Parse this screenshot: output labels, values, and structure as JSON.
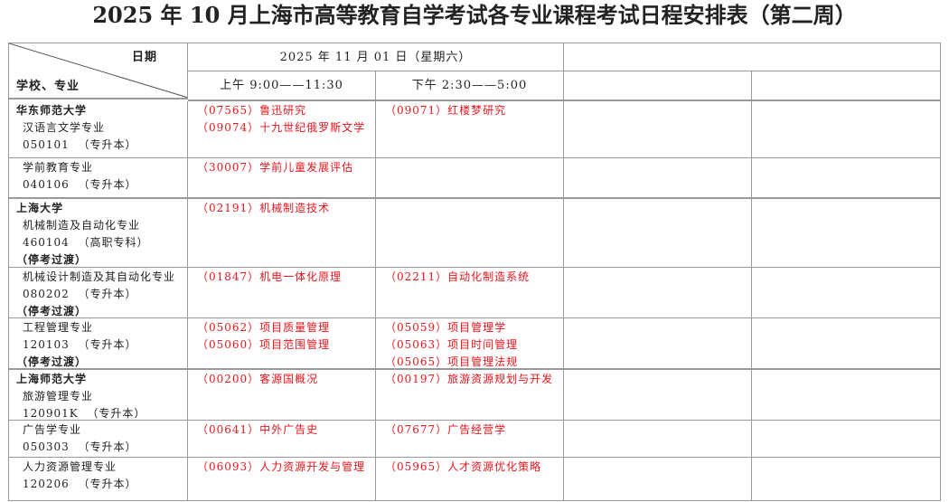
{
  "title": "2025 年 10 月上海市高等教育自学考试各专业课程考试日程安排表（第二周）",
  "header": {
    "date_label": "日期",
    "school_label": "学校、专业",
    "date": "2025 年 11 月 01 日（星期六）",
    "am": "上午 9:00——11:30",
    "pm": "下午 2:30——5:00"
  },
  "colors": {
    "course_text": "#e8161d",
    "grid": "#999999"
  },
  "rows": [
    {
      "thick": false,
      "lines": [
        {
          "text": "华东师范大学",
          "bold": true
        },
        {
          "text": "汉语言文学专业",
          "bold": false
        },
        {
          "text": "050101  （专升本）",
          "bold": false
        }
      ],
      "am": [
        "（07565）鲁迅研究",
        "（09074）十九世纪俄罗斯文学"
      ],
      "pm": [
        "（09071）红楼梦研究"
      ]
    },
    {
      "thick": true,
      "lines": [
        {
          "text": "学前教育专业",
          "bold": false
        },
        {
          "text": "040106  （专升本）",
          "bold": false
        }
      ],
      "am": [
        "（30007）学前儿童发展评估"
      ],
      "pm": []
    },
    {
      "thick": false,
      "lines": [
        {
          "text": "上海大学",
          "bold": true
        },
        {
          "text": "机械制造及自动化专业",
          "bold": false
        },
        {
          "text": "460104  （高职专科）",
          "bold": false
        },
        {
          "text": "（停考过渡）",
          "bold": true
        }
      ],
      "am": [
        "（02191）机械制造技术"
      ],
      "pm": []
    },
    {
      "thick": false,
      "lines": [
        {
          "text": "机械设计制造及其自动化专业",
          "bold": false
        },
        {
          "text": "080202  （专升本）",
          "bold": false
        },
        {
          "text": "（停考过渡）",
          "bold": true
        }
      ],
      "am": [
        "（01847）机电一体化原理"
      ],
      "pm": [
        "（02211）自动化制造系统"
      ]
    },
    {
      "thick": true,
      "lines": [
        {
          "text": "工程管理专业",
          "bold": false
        },
        {
          "text": "120103  （专升本）",
          "bold": false
        },
        {
          "text": "（停考过渡）",
          "bold": true
        }
      ],
      "am": [
        "（05062）项目质量管理",
        "（05060）项目范围管理"
      ],
      "pm": [
        "（05059）项目管理学",
        "（05063）项目时间管理",
        "（05065）项目管理法规"
      ]
    },
    {
      "thick": false,
      "lines": [
        {
          "text": "上海师范大学",
          "bold": true
        },
        {
          "text": "旅游管理专业",
          "bold": false
        },
        {
          "text": "120901K  （专升本）",
          "bold": false
        }
      ],
      "am": [
        "（00200）客源国概况"
      ],
      "pm": [
        "（00197）旅游资源规划与开发"
      ]
    },
    {
      "thick": false,
      "lines": [
        {
          "text": "广告学专业",
          "bold": false
        },
        {
          "text": "050303  （专升本）",
          "bold": false
        }
      ],
      "am": [
        "（00641）中外广告史"
      ],
      "pm": [
        "（07677）广告经营学"
      ]
    },
    {
      "thick": false,
      "lines": [
        {
          "text": "人力资源管理专业",
          "bold": false
        },
        {
          "text": "120206  （专升本）",
          "bold": false
        }
      ],
      "am": [
        "（06093）人力资源开发与管理"
      ],
      "pm": [
        "（05965）人才资源优化策略"
      ]
    }
  ]
}
